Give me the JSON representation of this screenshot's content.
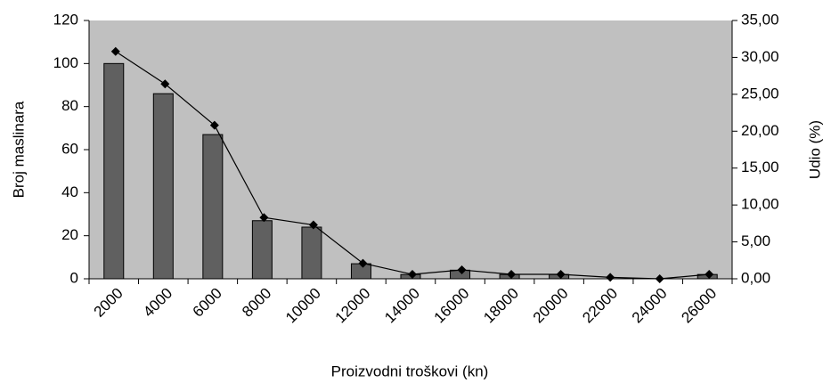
{
  "chart_data": {
    "type": "bar",
    "x_label": "Proizvodni troškovi (kn)",
    "y_label": "Broj maslinara",
    "y2_label": "Udio (%)",
    "categories": [
      "2000",
      "4000",
      "6000",
      "8000",
      "10000",
      "12000",
      "14000",
      "16000",
      "18000",
      "20000",
      "22000",
      "24000",
      "26000"
    ],
    "series": [
      {
        "type": "bar",
        "color": "#606060",
        "values": [
          100,
          86,
          67,
          27,
          24,
          7,
          2,
          4,
          2,
          2,
          0,
          0,
          2
        ]
      },
      {
        "type": "line",
        "axis": "y2",
        "color": "#000000",
        "values": [
          30.8,
          26.4,
          20.8,
          8.3,
          7.3,
          2.1,
          0.6,
          1.2,
          0.6,
          0.6,
          0.2,
          0,
          0.6
        ]
      }
    ],
    "ylim": [
      0,
      120
    ],
    "yticks": [
      0,
      20,
      40,
      60,
      80,
      100,
      120
    ],
    "y2lim": [
      0,
      35
    ],
    "y2ticks": [
      {
        "value": 0,
        "label": "0,00"
      },
      {
        "value": 5,
        "label": "5,00"
      },
      {
        "value": 10,
        "label": "10,00"
      },
      {
        "value": 15,
        "label": "15,00"
      },
      {
        "value": 20,
        "label": "20,00"
      },
      {
        "value": 25,
        "label": "25,00"
      },
      {
        "value": 30,
        "label": "30,00"
      },
      {
        "value": 35,
        "label": "35,00"
      }
    ],
    "plot_background": "#c0c0c0"
  }
}
